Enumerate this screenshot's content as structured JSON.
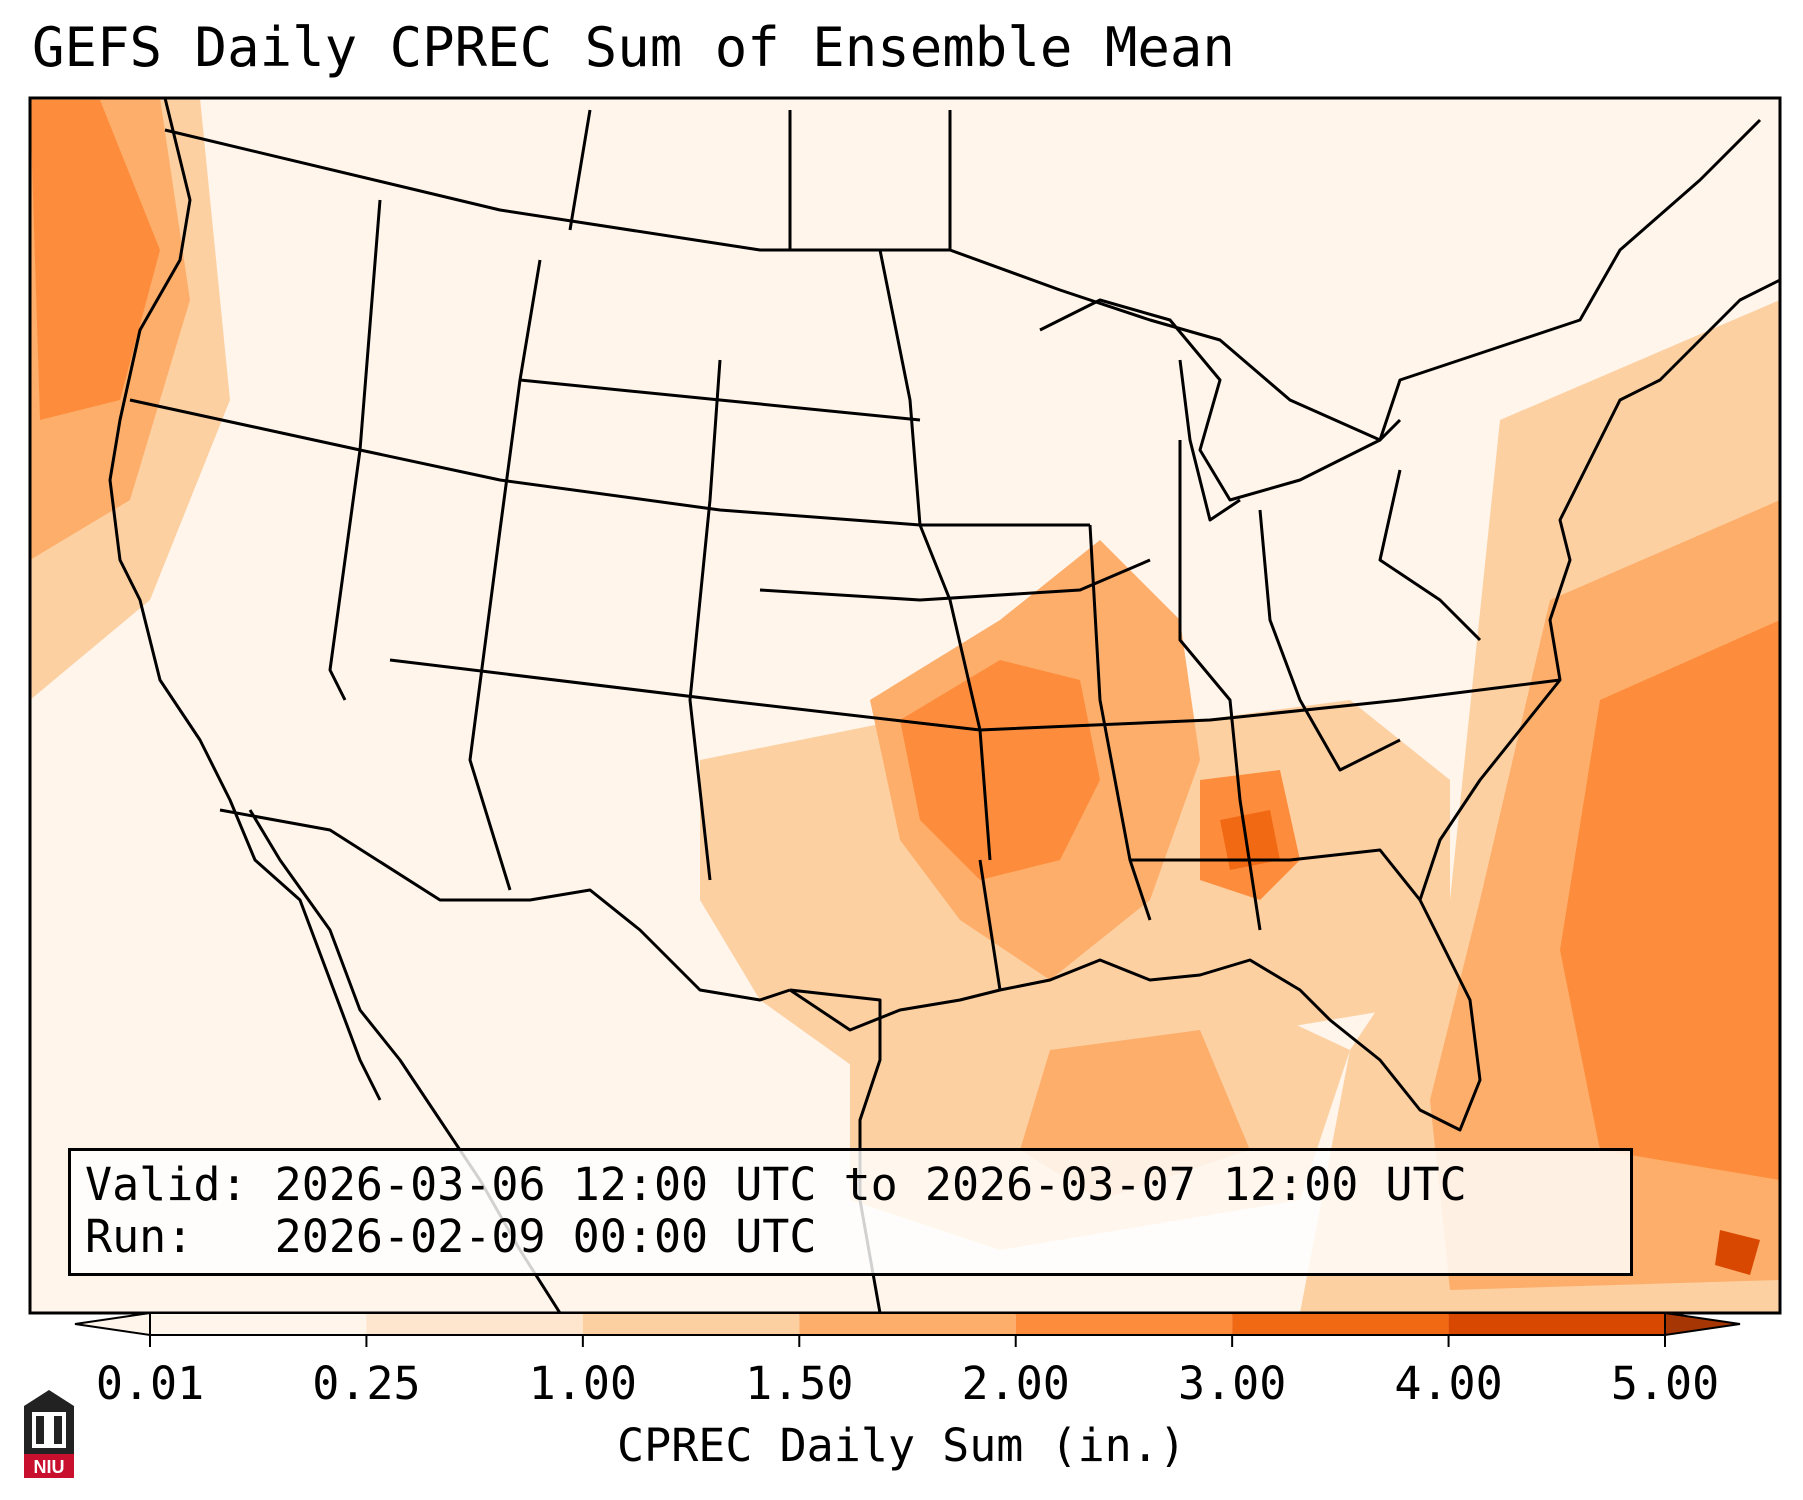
{
  "title": "GEFS Daily CPREC Sum of Ensemble Mean",
  "valid_line": "Valid: 2026-03-06 12:00 UTC to 2026-03-07 12:00 UTC",
  "run_line": "Run:   2026-02-09 00:00 UTC",
  "colorbar": {
    "label": "CPREC Daily Sum (in.)",
    "ticks": [
      "0.01",
      "0.25",
      "1.00",
      "1.50",
      "2.00",
      "3.00",
      "4.00",
      "5.00"
    ],
    "colors": [
      "#fff5eb",
      "#fee6ce",
      "#fdd0a2",
      "#fdae6b",
      "#fd8d3c",
      "#f16913",
      "#d94801",
      "#a63603"
    ]
  },
  "logo": {
    "text": "NIU",
    "icon": "university-tower-icon"
  },
  "map_colors": {
    "land_bg": "#fff5eb",
    "borders": "#000000"
  }
}
